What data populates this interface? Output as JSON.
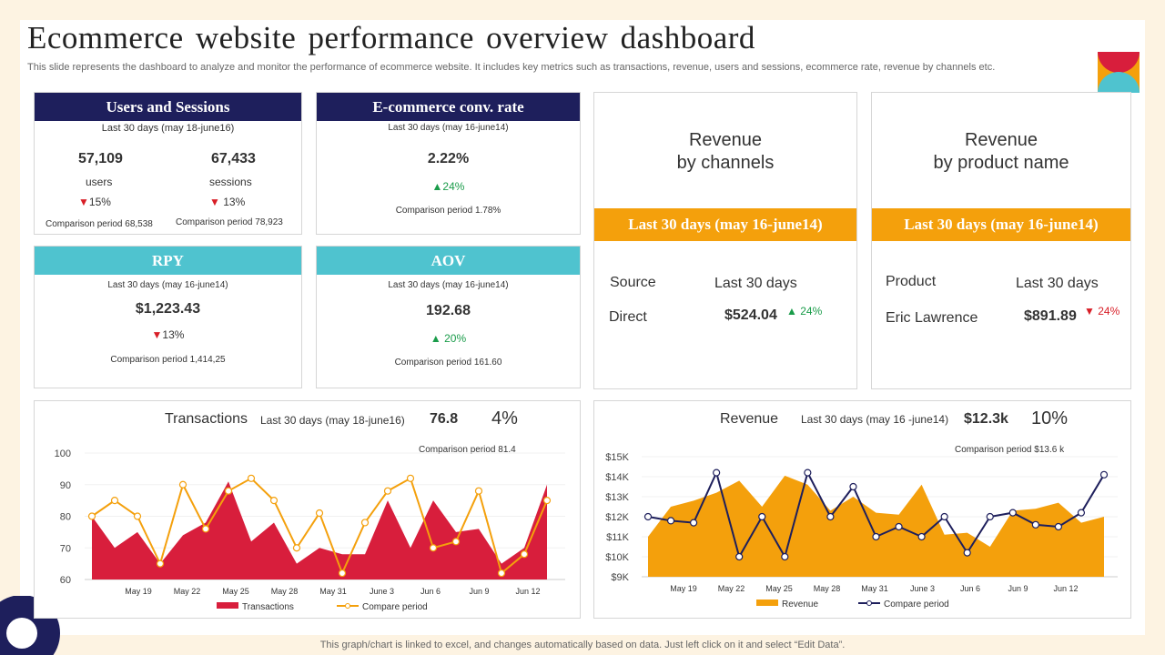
{
  "title": "Ecommerce website performance overview dashboard",
  "subtitle": "This slide represents the dashboard to analyze and monitor the performance of ecommerce website. It includes key metrics such as transactions, revenue, users and sessions, ecommerce rate, revenue by channels etc.",
  "users_sessions": {
    "header": "Users and Sessions",
    "period": "Last 30 days (may 18-june16)",
    "users_value": "57,109",
    "users_label": "users",
    "users_change": "15%",
    "users_comparison": "Comparison period 68,538",
    "sessions_value": "67,433",
    "sessions_label": "sessions",
    "sessions_change": "13%",
    "sessions_comparison": "Comparison period 78,923"
  },
  "conv_rate": {
    "header": "E-commerce conv. rate",
    "period": "Last 30 days (may 16-june14)",
    "value": "2.22%",
    "change": "24%",
    "comparison": "Comparison period 1.78%"
  },
  "rpy": {
    "header": "RPY",
    "period": "Last 30 days (may 16-june14)",
    "value": "$1,223.43",
    "change": "13%",
    "comparison": "Comparison period 1,414,25"
  },
  "aov": {
    "header": "AOV",
    "period": "Last 30 days (may 16-june14)",
    "value": "192.68",
    "change": "20%",
    "comparison": "Comparison period 161.60"
  },
  "rev_channels": {
    "title_line1": "Revenue",
    "title_line2": "by channels",
    "band": "Last 30 days (may 16-june14)",
    "col1": "Source",
    "col2": "Last 30 days",
    "row_label": "Direct",
    "row_value": "$524.04",
    "row_change": "24%"
  },
  "rev_product": {
    "title_line1": "Revenue",
    "title_line2": "by product name",
    "band": "Last 30 days (may 16-june14)",
    "col1": "Product",
    "col2": "Last 30 days",
    "row_label": "Eric Lawrence",
    "row_value": "$891.89",
    "row_change": "24%"
  },
  "colors": {
    "navy": "#1e1f5c",
    "teal": "#4fc3cf",
    "orange": "#f4a00c",
    "red": "#d81e3c",
    "up": "#1a9c4a",
    "down": "#d81e27"
  },
  "footer": "This graph/chart is linked to excel, and changes automatically based on data. Just left click on it and select “Edit Data”.",
  "chart_data": [
    {
      "type": "area",
      "title": "Transactions",
      "period": "Last 30 days (may 18-june16)",
      "total": "76.8",
      "change": "4%",
      "comparison": "Comparison period 81.4",
      "ylim": [
        60,
        100
      ],
      "yticks": [
        "60",
        "70",
        "80",
        "90",
        "100"
      ],
      "xticks": [
        "May 19",
        "May 22",
        "May 25",
        "May 28",
        "May 31",
        "June 3",
        "Jun 6",
        "Jun 9",
        "Jun 12"
      ],
      "grid": true,
      "legend": "bottom",
      "series": [
        {
          "name": "Transactions",
          "kind": "area",
          "color": "#d81e3c",
          "values": [
            80,
            70,
            75,
            65,
            74,
            78,
            91,
            72,
            78,
            65,
            70,
            68,
            68,
            85,
            70,
            85,
            75,
            76,
            65,
            70,
            90
          ]
        },
        {
          "name": "Compare period",
          "kind": "line",
          "color": "#f4a00c",
          "values": [
            80,
            85,
            80,
            65,
            90,
            76,
            88,
            92,
            85,
            70,
            81,
            62,
            78,
            88,
            92,
            70,
            72,
            88,
            62,
            68,
            85
          ]
        }
      ]
    },
    {
      "type": "area",
      "title": "Revenue",
      "period": "Last 30 days (may 16 -june14)",
      "total": "$12.3k",
      "change": "10%",
      "comparison": "Comparison period $13.6 k",
      "ylim": [
        9,
        15
      ],
      "yticks": [
        "$9K",
        "$10K",
        "$11K",
        "$12K",
        "$13K",
        "$14K",
        "$15K"
      ],
      "xticks": [
        "May 19",
        "May 22",
        "May 25",
        "May 28",
        "May 31",
        "June 3",
        "Jun 6",
        "Jun 9",
        "Jun 12"
      ],
      "grid": true,
      "legend": "bottom",
      "series": [
        {
          "name": "Revenue",
          "kind": "area",
          "color": "#f4a00c",
          "values": [
            11,
            12.5,
            12.8,
            13.2,
            13.8,
            12.5,
            14.05,
            13.6,
            12.3,
            13,
            12.2,
            12.1,
            13.6,
            11.1,
            11.2,
            10.5,
            12.3,
            12.4,
            12.7,
            11.7,
            12
          ]
        },
        {
          "name": "Compare period",
          "kind": "line",
          "color": "#1e1f5c",
          "values": [
            12,
            11.8,
            11.7,
            14.2,
            10,
            12,
            10,
            14.2,
            12,
            13.5,
            11,
            11.5,
            11,
            12,
            10.2,
            12,
            12.2,
            11.6,
            11.5,
            12.2,
            14.1
          ]
        }
      ]
    }
  ]
}
